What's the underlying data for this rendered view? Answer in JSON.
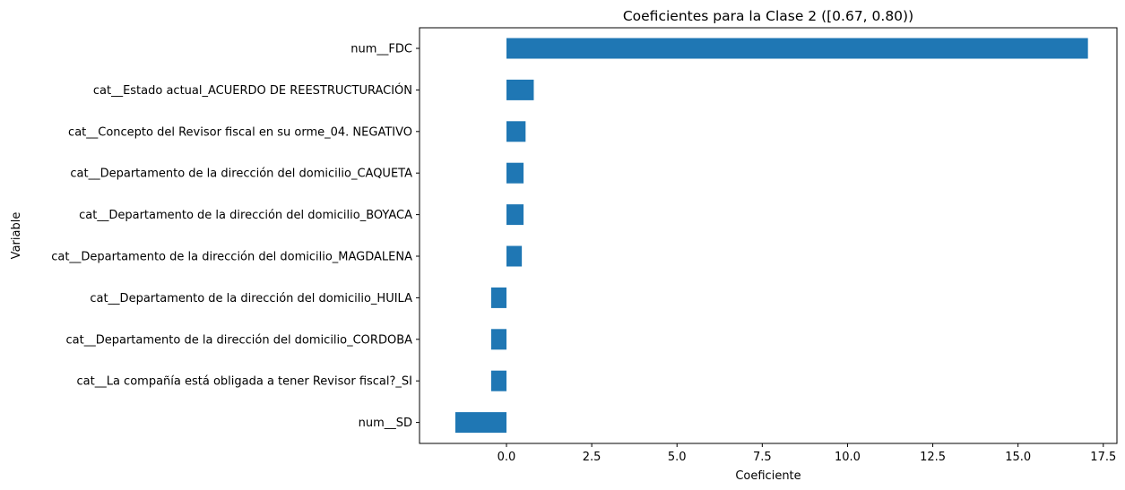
{
  "chart_data": {
    "type": "bar",
    "orientation": "horizontal",
    "title": "Coeficientes para la Clase 2 ([0.67, 0.80))",
    "xlabel": "Coeficiente",
    "ylabel": "Variable",
    "bar_color": "#1f77b4",
    "xlim": [
      -2.55,
      17.9
    ],
    "xticks": [
      0.0,
      2.5,
      5.0,
      7.5,
      10.0,
      12.5,
      15.0,
      17.5
    ],
    "xtick_labels": [
      "0.0",
      "2.5",
      "5.0",
      "7.5",
      "10.0",
      "12.5",
      "15.0",
      "17.5"
    ],
    "grid": false,
    "legend": "none",
    "categories": [
      "num__FDC",
      "cat__Estado actual_ACUERDO DE REESTRUCTURACIÓN",
      "cat__Concepto del Revisor fiscal en su orme_04. NEGATIVO",
      "cat__Departamento de la dirección del domicilio_CAQUETA",
      "cat__Departamento de la dirección del domicilio_BOYACA",
      "cat__Departamento de la dirección del domicilio_MAGDALENA",
      "cat__Departamento de la dirección del domicilio_HUILA",
      "cat__Departamento de la dirección del domicilio_CORDOBA",
      "cat__La compañía está obligada a tener Revisor fiscal?_SI",
      "num__SD"
    ],
    "values": [
      17.05,
      0.8,
      0.56,
      0.5,
      0.5,
      0.45,
      -0.45,
      -0.45,
      -0.45,
      -1.5
    ]
  }
}
